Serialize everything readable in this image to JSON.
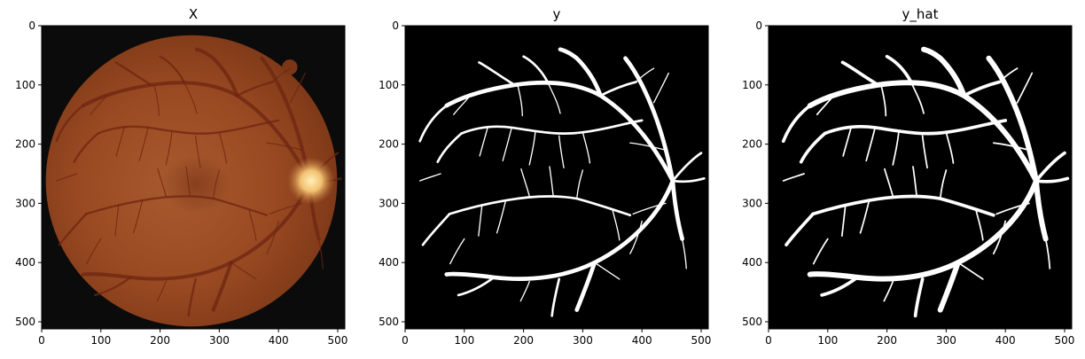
{
  "figure": {
    "panels": [
      {
        "title": "X",
        "xticks": [
          "0",
          "100",
          "200",
          "300",
          "400",
          "500"
        ],
        "yticks": [
          "0",
          "100",
          "200",
          "300",
          "400",
          "500"
        ],
        "content": "retinal-fundus-photo"
      },
      {
        "title": "y",
        "xticks": [
          "0",
          "100",
          "200",
          "300",
          "400",
          "500"
        ],
        "yticks": [
          "0",
          "100",
          "200",
          "300",
          "400",
          "500"
        ],
        "content": "ground-truth-vessel-mask"
      },
      {
        "title": "y_hat",
        "xticks": [
          "0",
          "100",
          "200",
          "300",
          "400",
          "500"
        ],
        "yticks": [
          "0",
          "100",
          "200",
          "300",
          "400",
          "500"
        ],
        "content": "predicted-vessel-mask"
      }
    ],
    "image_extent": [
      0,
      512
    ],
    "colors": {
      "background": "#000000",
      "vessel_mask": "#ffffff",
      "fundus_base": "#9a4a22",
      "optic_disc": "#f2c070",
      "photo_vessel": "#7a2e18"
    }
  }
}
